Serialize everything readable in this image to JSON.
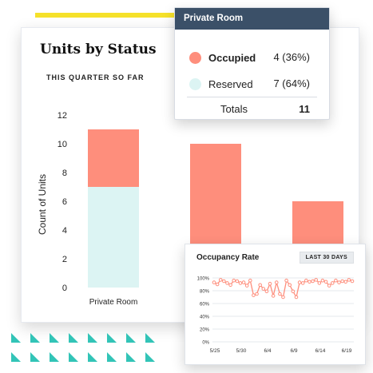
{
  "main_chart": {
    "title": "Units by Status",
    "subtitle": "THIS QUARTER SO FAR",
    "ylabel": "Count of Units",
    "visible_category_label": "Private Room"
  },
  "chart_data": [
    {
      "type": "bar",
      "stacked": true,
      "title": "Units by Status",
      "subtitle": "THIS QUARTER SO FAR",
      "ylabel": "Count of Units",
      "ylim": [
        0,
        12
      ],
      "yticks": [
        0,
        2,
        4,
        6,
        8,
        10,
        12
      ],
      "categories": [
        "Private Room",
        "",
        ""
      ],
      "series": [
        {
          "name": "Reserved",
          "color": "#dcf4f3",
          "values": [
            7,
            0,
            0
          ]
        },
        {
          "name": "Occupied",
          "color": "#fe8e7c",
          "values": [
            4,
            10,
            6
          ]
        }
      ],
      "grid": false,
      "legend": "tooltip"
    },
    {
      "type": "line",
      "title": "Occupancy Rate",
      "x_ticks": [
        "5/25",
        "5/30",
        "6/4",
        "6/9",
        "6/14",
        "6/19"
      ],
      "y_ticks": [
        "0%",
        "20%",
        "40%",
        "60%",
        "80%",
        "100%"
      ],
      "ylim": [
        0,
        100
      ],
      "grid": true,
      "series": [
        {
          "color": "#fe8e7c",
          "values": [
            93,
            90,
            97,
            95,
            92,
            89,
            96,
            95,
            92,
            93,
            88,
            96,
            73,
            75,
            89,
            83,
            79,
            91,
            72,
            93,
            75,
            70,
            96,
            89,
            79,
            70,
            93,
            92,
            96,
            94,
            95,
            97,
            92,
            96,
            94,
            88,
            92,
            96,
            93,
            95,
            94,
            97,
            95
          ]
        }
      ]
    }
  ],
  "tooltip": {
    "header": "Private Room",
    "rows": [
      {
        "label": "Occupied",
        "value": "4 (36%)",
        "color": "#fe8e7c"
      },
      {
        "label": "Reserved",
        "value": "7 (64%)",
        "color": "#dcf4f3"
      }
    ],
    "totals_label": "Totals",
    "totals_value": "11"
  },
  "occupancy": {
    "title": "Occupancy Rate",
    "range_badge": "LAST 30 DAYS"
  }
}
